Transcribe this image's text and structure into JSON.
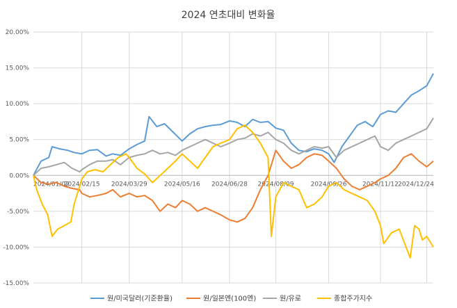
{
  "chart_data": {
    "type": "line",
    "title": "2024 연초대비 변화율",
    "xlabel": "",
    "ylabel": "",
    "ylim": [
      -0.15,
      0.2
    ],
    "ytick_values": [
      0.2,
      0.15,
      0.1,
      0.05,
      0.0,
      -0.05,
      -0.1,
      -0.15
    ],
    "ytick_labels": [
      "20.00%",
      "15.00%",
      "10.00%",
      "5.00%",
      "0.00%",
      "-5.00%",
      "-10.00%",
      "-15.00%"
    ],
    "x_range": [
      "2024-01-02",
      "2024-12-30"
    ],
    "xtick_values": [
      "2024-01-02",
      "2024-02-15",
      "2024-03-29",
      "2024-05-16",
      "2024-06-28",
      "2024-08-09",
      "2024-09-26",
      "2024-11-12",
      "2024-12-24"
    ],
    "xtick_labels": [
      "2024/01/02",
      "2024/02/15",
      "2024/03/29",
      "2024/05/16",
      "2024/06/28",
      "2024/08/09",
      "2024/09/26",
      "2024/11/12",
      "2024/12/24"
    ],
    "grid": true,
    "legend_position": "bottom",
    "series": [
      {
        "name": "원/미국달러(기준환율)",
        "color": "#5b9bd5",
        "points": [
          [
            "2024-01-02",
            0.0
          ],
          [
            "2024-01-09",
            0.02
          ],
          [
            "2024-01-16",
            0.025
          ],
          [
            "2024-01-19",
            0.04
          ],
          [
            "2024-01-26",
            0.037
          ],
          [
            "2024-02-02",
            0.035
          ],
          [
            "2024-02-08",
            0.032
          ],
          [
            "2024-02-15",
            0.03
          ],
          [
            "2024-02-22",
            0.035
          ],
          [
            "2024-02-29",
            0.036
          ],
          [
            "2024-03-08",
            0.027
          ],
          [
            "2024-03-14",
            0.03
          ],
          [
            "2024-03-21",
            0.028
          ],
          [
            "2024-03-29",
            0.037
          ],
          [
            "2024-04-05",
            0.043
          ],
          [
            "2024-04-12",
            0.048
          ],
          [
            "2024-04-16",
            0.082
          ],
          [
            "2024-04-23",
            0.068
          ],
          [
            "2024-04-30",
            0.072
          ],
          [
            "2024-05-08",
            0.06
          ],
          [
            "2024-05-16",
            0.048
          ],
          [
            "2024-05-23",
            0.058
          ],
          [
            "2024-05-30",
            0.065
          ],
          [
            "2024-06-06",
            0.068
          ],
          [
            "2024-06-13",
            0.07
          ],
          [
            "2024-06-20",
            0.071
          ],
          [
            "2024-06-28",
            0.076
          ],
          [
            "2024-07-05",
            0.074
          ],
          [
            "2024-07-12",
            0.068
          ],
          [
            "2024-07-19",
            0.078
          ],
          [
            "2024-07-26",
            0.074
          ],
          [
            "2024-08-02",
            0.075
          ],
          [
            "2024-08-09",
            0.066
          ],
          [
            "2024-08-16",
            0.063
          ],
          [
            "2024-08-23",
            0.045
          ],
          [
            "2024-08-30",
            0.035
          ],
          [
            "2024-09-06",
            0.033
          ],
          [
            "2024-09-13",
            0.037
          ],
          [
            "2024-09-20",
            0.035
          ],
          [
            "2024-09-26",
            0.03
          ],
          [
            "2024-10-01",
            0.018
          ],
          [
            "2024-10-08",
            0.04
          ],
          [
            "2024-10-15",
            0.055
          ],
          [
            "2024-10-22",
            0.07
          ],
          [
            "2024-10-29",
            0.075
          ],
          [
            "2024-11-05",
            0.068
          ],
          [
            "2024-11-12",
            0.085
          ],
          [
            "2024-11-19",
            0.09
          ],
          [
            "2024-11-26",
            0.088
          ],
          [
            "2024-12-03",
            0.1
          ],
          [
            "2024-12-10",
            0.112
          ],
          [
            "2024-12-17",
            0.118
          ],
          [
            "2024-12-24",
            0.125
          ],
          [
            "2024-12-30",
            0.142
          ]
        ]
      },
      {
        "name": "원/일본엔(100엔)",
        "color": "#ed7d31",
        "points": [
          [
            "2024-01-02",
            0.0
          ],
          [
            "2024-01-09",
            -0.01
          ],
          [
            "2024-01-16",
            -0.012
          ],
          [
            "2024-01-23",
            -0.01
          ],
          [
            "2024-01-30",
            -0.015
          ],
          [
            "2024-02-06",
            -0.018
          ],
          [
            "2024-02-13",
            -0.02
          ],
          [
            "2024-02-15",
            -0.025
          ],
          [
            "2024-02-22",
            -0.03
          ],
          [
            "2024-02-29",
            -0.028
          ],
          [
            "2024-03-08",
            -0.025
          ],
          [
            "2024-03-14",
            -0.02
          ],
          [
            "2024-03-21",
            -0.03
          ],
          [
            "2024-03-29",
            -0.025
          ],
          [
            "2024-04-05",
            -0.03
          ],
          [
            "2024-04-12",
            -0.028
          ],
          [
            "2024-04-19",
            -0.035
          ],
          [
            "2024-04-26",
            -0.05
          ],
          [
            "2024-05-03",
            -0.04
          ],
          [
            "2024-05-10",
            -0.045
          ],
          [
            "2024-05-16",
            -0.035
          ],
          [
            "2024-05-23",
            -0.04
          ],
          [
            "2024-05-30",
            -0.05
          ],
          [
            "2024-06-06",
            -0.045
          ],
          [
            "2024-06-13",
            -0.05
          ],
          [
            "2024-06-20",
            -0.055
          ],
          [
            "2024-06-28",
            -0.062
          ],
          [
            "2024-07-05",
            -0.065
          ],
          [
            "2024-07-12",
            -0.06
          ],
          [
            "2024-07-19",
            -0.045
          ],
          [
            "2024-07-26",
            -0.02
          ],
          [
            "2024-08-02",
            0.0
          ],
          [
            "2024-08-09",
            0.035
          ],
          [
            "2024-08-16",
            0.02
          ],
          [
            "2024-08-23",
            0.01
          ],
          [
            "2024-08-30",
            0.015
          ],
          [
            "2024-09-06",
            0.025
          ],
          [
            "2024-09-13",
            0.03
          ],
          [
            "2024-09-20",
            0.028
          ],
          [
            "2024-09-26",
            0.02
          ],
          [
            "2024-10-03",
            0.01
          ],
          [
            "2024-10-10",
            -0.005
          ],
          [
            "2024-10-17",
            -0.015
          ],
          [
            "2024-10-24",
            -0.02
          ],
          [
            "2024-10-31",
            -0.015
          ],
          [
            "2024-11-07",
            -0.01
          ],
          [
            "2024-11-12",
            -0.005
          ],
          [
            "2024-11-19",
            0.0
          ],
          [
            "2024-11-26",
            0.01
          ],
          [
            "2024-12-03",
            0.025
          ],
          [
            "2024-12-10",
            0.03
          ],
          [
            "2024-12-17",
            0.02
          ],
          [
            "2024-12-24",
            0.012
          ],
          [
            "2024-12-30",
            0.02
          ]
        ]
      },
      {
        "name": "원/유로",
        "color": "#a5a5a5",
        "points": [
          [
            "2024-01-02",
            0.0
          ],
          [
            "2024-01-09",
            0.01
          ],
          [
            "2024-01-16",
            0.012
          ],
          [
            "2024-01-23",
            0.015
          ],
          [
            "2024-01-30",
            0.018
          ],
          [
            "2024-02-06",
            0.01
          ],
          [
            "2024-02-13",
            0.005
          ],
          [
            "2024-02-15",
            0.008
          ],
          [
            "2024-02-22",
            0.015
          ],
          [
            "2024-02-29",
            0.02
          ],
          [
            "2024-03-08",
            0.02
          ],
          [
            "2024-03-14",
            0.022
          ],
          [
            "2024-03-21",
            0.015
          ],
          [
            "2024-03-29",
            0.025
          ],
          [
            "2024-04-05",
            0.028
          ],
          [
            "2024-04-12",
            0.03
          ],
          [
            "2024-04-19",
            0.035
          ],
          [
            "2024-04-26",
            0.03
          ],
          [
            "2024-05-03",
            0.032
          ],
          [
            "2024-05-10",
            0.028
          ],
          [
            "2024-05-16",
            0.035
          ],
          [
            "2024-05-23",
            0.04
          ],
          [
            "2024-05-30",
            0.045
          ],
          [
            "2024-06-06",
            0.05
          ],
          [
            "2024-06-13",
            0.045
          ],
          [
            "2024-06-20",
            0.04
          ],
          [
            "2024-06-28",
            0.045
          ],
          [
            "2024-07-05",
            0.05
          ],
          [
            "2024-07-12",
            0.052
          ],
          [
            "2024-07-19",
            0.058
          ],
          [
            "2024-07-26",
            0.055
          ],
          [
            "2024-08-02",
            0.06
          ],
          [
            "2024-08-09",
            0.05
          ],
          [
            "2024-08-16",
            0.045
          ],
          [
            "2024-08-23",
            0.035
          ],
          [
            "2024-08-30",
            0.03
          ],
          [
            "2024-09-06",
            0.035
          ],
          [
            "2024-09-13",
            0.04
          ],
          [
            "2024-09-20",
            0.038
          ],
          [
            "2024-09-26",
            0.04
          ],
          [
            "2024-10-03",
            0.025
          ],
          [
            "2024-10-10",
            0.035
          ],
          [
            "2024-10-17",
            0.04
          ],
          [
            "2024-10-24",
            0.045
          ],
          [
            "2024-10-31",
            0.05
          ],
          [
            "2024-11-07",
            0.055
          ],
          [
            "2024-11-12",
            0.04
          ],
          [
            "2024-11-19",
            0.035
          ],
          [
            "2024-11-26",
            0.045
          ],
          [
            "2024-12-03",
            0.05
          ],
          [
            "2024-12-10",
            0.055
          ],
          [
            "2024-12-17",
            0.06
          ],
          [
            "2024-12-24",
            0.065
          ],
          [
            "2024-12-30",
            0.08
          ]
        ]
      },
      {
        "name": "종합주가지수",
        "color": "#ffc000",
        "points": [
          [
            "2024-01-02",
            0.0
          ],
          [
            "2024-01-05",
            -0.02
          ],
          [
            "2024-01-10",
            -0.04
          ],
          [
            "2024-01-15",
            -0.055
          ],
          [
            "2024-01-19",
            -0.085
          ],
          [
            "2024-01-24",
            -0.075
          ],
          [
            "2024-01-30",
            -0.07
          ],
          [
            "2024-02-05",
            -0.065
          ],
          [
            "2024-02-08",
            -0.04
          ],
          [
            "2024-02-13",
            -0.015
          ],
          [
            "2024-02-15",
            -0.005
          ],
          [
            "2024-02-20",
            0.005
          ],
          [
            "2024-02-27",
            0.008
          ],
          [
            "2024-03-05",
            0.005
          ],
          [
            "2024-03-12",
            0.015
          ],
          [
            "2024-03-19",
            0.025
          ],
          [
            "2024-03-26",
            0.03
          ],
          [
            "2024-03-29",
            0.025
          ],
          [
            "2024-04-05",
            0.01
          ],
          [
            "2024-04-12",
            0.002
          ],
          [
            "2024-04-19",
            -0.01
          ],
          [
            "2024-04-26",
            0.0
          ],
          [
            "2024-05-03",
            0.01
          ],
          [
            "2024-05-10",
            0.02
          ],
          [
            "2024-05-16",
            0.03
          ],
          [
            "2024-05-23",
            0.02
          ],
          [
            "2024-05-30",
            0.01
          ],
          [
            "2024-06-06",
            0.025
          ],
          [
            "2024-06-13",
            0.04
          ],
          [
            "2024-06-20",
            0.045
          ],
          [
            "2024-06-28",
            0.05
          ],
          [
            "2024-07-05",
            0.065
          ],
          [
            "2024-07-12",
            0.07
          ],
          [
            "2024-07-19",
            0.06
          ],
          [
            "2024-07-26",
            0.045
          ],
          [
            "2024-08-02",
            0.025
          ],
          [
            "2024-08-05",
            -0.085
          ],
          [
            "2024-08-09",
            -0.03
          ],
          [
            "2024-08-16",
            -0.01
          ],
          [
            "2024-08-23",
            -0.015
          ],
          [
            "2024-08-30",
            -0.02
          ],
          [
            "2024-09-06",
            -0.045
          ],
          [
            "2024-09-13",
            -0.04
          ],
          [
            "2024-09-20",
            -0.03
          ],
          [
            "2024-09-26",
            -0.015
          ],
          [
            "2024-10-03",
            -0.01
          ],
          [
            "2024-10-10",
            -0.02
          ],
          [
            "2024-10-17",
            -0.025
          ],
          [
            "2024-10-24",
            -0.03
          ],
          [
            "2024-10-31",
            -0.035
          ],
          [
            "2024-11-07",
            -0.05
          ],
          [
            "2024-11-12",
            -0.07
          ],
          [
            "2024-11-15",
            -0.095
          ],
          [
            "2024-11-22",
            -0.08
          ],
          [
            "2024-11-29",
            -0.075
          ],
          [
            "2024-12-04",
            -0.095
          ],
          [
            "2024-12-09",
            -0.115
          ],
          [
            "2024-12-13",
            -0.07
          ],
          [
            "2024-12-17",
            -0.075
          ],
          [
            "2024-12-20",
            -0.09
          ],
          [
            "2024-12-24",
            -0.085
          ],
          [
            "2024-12-30",
            -0.1
          ]
        ]
      }
    ]
  }
}
